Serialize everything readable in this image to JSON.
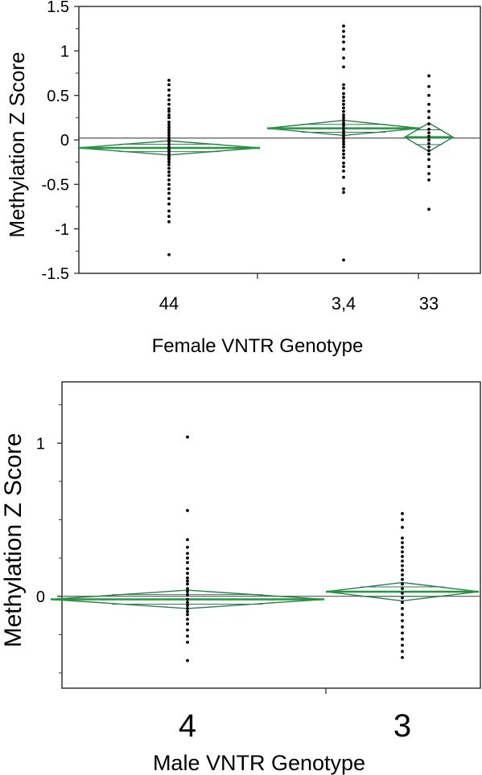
{
  "chart_data": [
    {
      "type": "scatter",
      "subtype": "means-diamonds",
      "xlabel": "Female VNTR Genotype",
      "ylabel": "Methylation Z Score",
      "ylim": [
        -1.5,
        1.5
      ],
      "yticks": [
        1.5,
        1,
        0.5,
        0,
        -0.5,
        -1,
        -1.5
      ],
      "ytick_labels": [
        "1.5",
        "1",
        "0.5",
        "0",
        "-0.5",
        "-1",
        "-1.5"
      ],
      "grand_mean": 0.02,
      "grid": false,
      "categories": [
        "44",
        "3,4",
        "33"
      ],
      "groups": [
        {
          "name": "44",
          "mean": -0.09,
          "ci": [
            -0.17,
            -0.01
          ],
          "points": [
            0.67,
            0.62,
            0.56,
            0.5,
            0.45,
            0.4,
            0.35,
            0.32,
            0.28,
            0.25,
            0.2,
            0.17,
            0.14,
            0.11,
            0.08,
            0.05,
            0.02,
            0.0,
            -0.02,
            -0.05,
            -0.08,
            -0.1,
            -0.12,
            -0.15,
            -0.18,
            -0.2,
            -0.22,
            -0.25,
            -0.28,
            -0.32,
            -0.36,
            -0.4,
            -0.45,
            -0.5,
            -0.55,
            -0.6,
            -0.66,
            -0.72,
            -0.8,
            -0.86,
            -0.92,
            -1.29
          ]
        },
        {
          "name": "3,4",
          "mean": 0.13,
          "ci": [
            0.05,
            0.22
          ],
          "points": [
            1.28,
            1.22,
            1.16,
            1.1,
            1.02,
            0.92,
            0.82,
            0.62,
            0.58,
            0.52,
            0.48,
            0.44,
            0.4,
            0.36,
            0.32,
            0.28,
            0.25,
            0.22,
            0.19,
            0.16,
            0.13,
            0.1,
            0.07,
            0.04,
            0.01,
            -0.02,
            -0.05,
            -0.08,
            -0.12,
            -0.16,
            -0.2,
            -0.26,
            -0.3,
            -0.35,
            -0.42,
            -0.55,
            -0.59,
            -1.35
          ]
        },
        {
          "name": "33",
          "mean": 0.03,
          "ci": [
            -0.13,
            0.19
          ],
          "points": [
            0.72,
            0.6,
            0.5,
            0.4,
            0.32,
            0.25,
            0.18,
            0.12,
            0.08,
            0.04,
            0.0,
            -0.04,
            -0.08,
            -0.12,
            -0.16,
            -0.22,
            -0.3,
            -0.38,
            -0.45,
            -0.78
          ]
        }
      ]
    },
    {
      "type": "scatter",
      "subtype": "means-diamonds",
      "xlabel": "Male VNTR Genotype",
      "ylabel": "Methylation Z Score",
      "ylim": [
        -0.6,
        1.4
      ],
      "yticks": [
        1,
        0
      ],
      "ytick_labels": [
        "1",
        "0"
      ],
      "grand_mean": 0.0,
      "grid": false,
      "categories": [
        "4",
        "3"
      ],
      "groups": [
        {
          "name": "4",
          "mean": -0.02,
          "ci": [
            -0.08,
            0.04
          ],
          "points": [
            1.04,
            0.56,
            0.37,
            0.32,
            0.28,
            0.25,
            0.22,
            0.18,
            0.15,
            0.12,
            0.1,
            0.08,
            0.05,
            0.03,
            0.01,
            -0.02,
            -0.04,
            -0.06,
            -0.08,
            -0.1,
            -0.12,
            -0.15,
            -0.18,
            -0.22,
            -0.26,
            -0.3,
            -0.42
          ]
        },
        {
          "name": "3",
          "mean": 0.03,
          "ci": [
            -0.03,
            0.09
          ],
          "points": [
            0.54,
            0.5,
            0.45,
            0.38,
            0.35,
            0.32,
            0.29,
            0.26,
            0.23,
            0.2,
            0.17,
            0.14,
            0.11,
            0.08,
            0.05,
            0.02,
            -0.01,
            -0.04,
            -0.08,
            -0.12,
            -0.16,
            -0.2,
            -0.24,
            -0.28,
            -0.32,
            -0.36,
            -0.4
          ]
        }
      ]
    }
  ]
}
